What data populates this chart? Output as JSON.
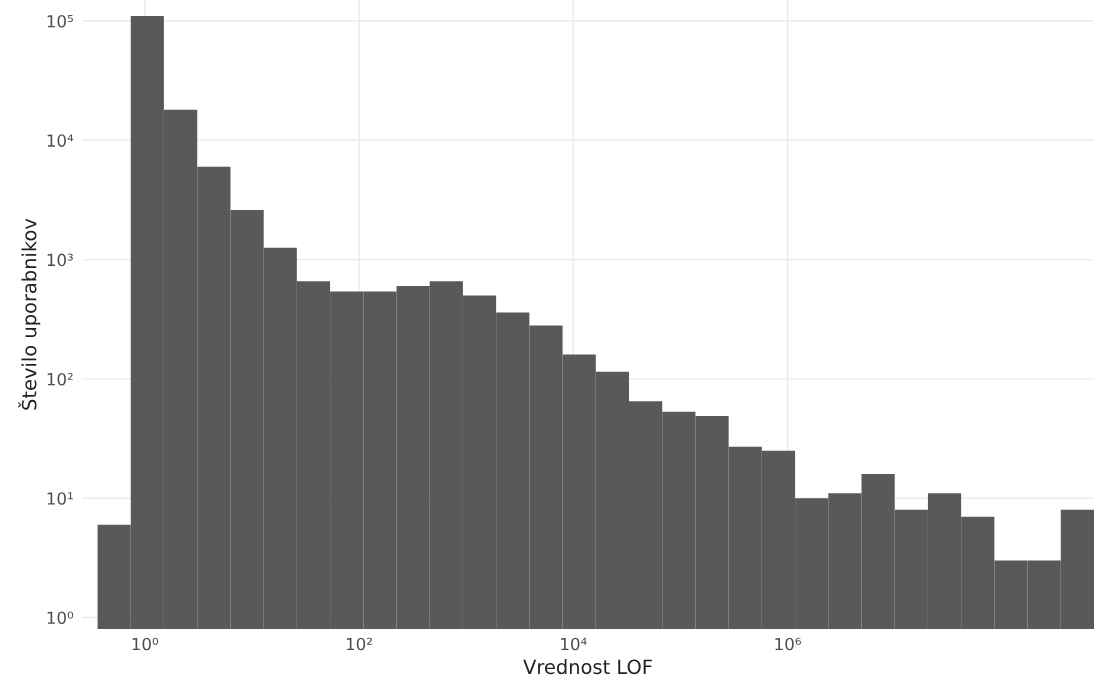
{
  "chart_data": {
    "type": "histogram",
    "xlabel": "Vrednost LOF",
    "ylabel": "Število uporabnikov",
    "color": "#595959",
    "bins": [
      0.363,
      0.741,
      1.51,
      3.09,
      6.31,
      12.9,
      26.3,
      53.7,
      110,
      224,
      457,
      933,
      1905,
      3890,
      7943,
      16218,
      33113,
      67608,
      138038,
      281838,
      575440,
      1174898,
      2398833,
      4897788,
      10000000,
      20417379,
      41686938,
      85113804,
      173780083,
      354813389,
      724435960
    ],
    "values": [
      6,
      110000,
      18000,
      6000,
      2600,
      1260,
      660,
      540,
      540,
      600,
      660,
      500,
      360,
      280,
      160,
      115,
      65,
      53,
      49,
      27,
      25,
      10,
      11,
      16,
      8,
      11,
      7,
      3,
      3,
      8
    ],
    "log": "xy",
    "xlim": [
      0.26,
      724435960
    ],
    "ylim": [
      0.8,
      150000
    ],
    "xticks": [
      {
        "value": 1,
        "label": "10⁰"
      },
      {
        "value": 100,
        "label": "10²"
      },
      {
        "value": 10000,
        "label": "10⁴"
      },
      {
        "value": 1000000,
        "label": "10⁶"
      }
    ],
    "yticks": [
      {
        "value": 1,
        "label": "10⁰"
      },
      {
        "value": 10,
        "label": "10¹"
      },
      {
        "value": 100,
        "label": "10²"
      },
      {
        "value": 1000,
        "label": "10³"
      },
      {
        "value": 10000,
        "label": "10⁴"
      },
      {
        "value": 100000,
        "label": "10⁵"
      }
    ],
    "grid": true
  }
}
